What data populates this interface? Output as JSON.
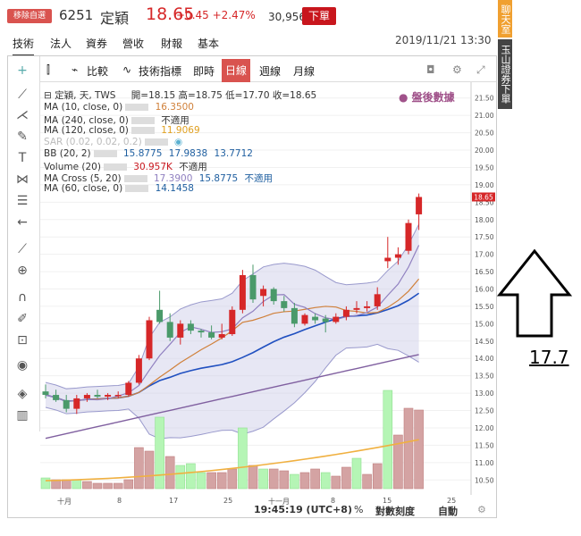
{
  "header": {
    "watch_label": "移除自選",
    "code": "6251",
    "name": "定穎",
    "price": "18.65",
    "change": "+0.45 +2.47%",
    "volume": "30,956.5張",
    "order_label": "下單"
  },
  "nav": [
    "技術",
    "法人",
    "資券",
    "營收",
    "財報",
    "基本"
  ],
  "datetime": "2019/11/21 13:30",
  "side_tabs": [
    "聊天室",
    "玉山證券下單"
  ],
  "toolbar": {
    "compare": "比較",
    "indicators": "技術指標",
    "realtime": "即時",
    "daily": "日線",
    "weekly": "週線",
    "monthly": "月線"
  },
  "legend": {
    "main": "定穎, 天, TWS",
    "ohlc": "開=18.15 高=18.75 低=17.70 收=18.65",
    "after_hours": "● 盤後數據",
    "ma10": {
      "label": "MA (10, close, 0)",
      "v1": "16.3500"
    },
    "ma240": {
      "label": "MA (240, close, 0)",
      "v1": "不適用"
    },
    "ma120": {
      "label": "MA (120, close, 0)",
      "v1": "11.9069"
    },
    "sar": {
      "label": "SAR (0.02, 0.02, 0.2)"
    },
    "bb": {
      "label": "BB (20, 2)",
      "v1": "15.8775",
      "v2": "17.9838",
      "v3": "13.7712"
    },
    "volume": {
      "label": "Volume (20)",
      "v1": "30.957K",
      "v2": "不適用"
    },
    "macross": {
      "label": "MA Cross (5, 20)",
      "v1": "17.3900",
      "v2": "15.8775",
      "v3": "不適用"
    },
    "ma60": {
      "label": "MA (60, close, 0)",
      "v1": "14.1458"
    }
  },
  "y_ticks": [
    "21.50",
    "21.00",
    "20.50",
    "20.00",
    "19.50",
    "19.00",
    "18.50",
    "18.00",
    "17.50",
    "17.00",
    "16.50",
    "16.00",
    "15.50",
    "15.00",
    "14.50",
    "14.00",
    "13.50",
    "13.00",
    "12.50",
    "12.00",
    "11.50",
    "11.00",
    "10.50"
  ],
  "price_tag": "18.65",
  "x_ticks": [
    "十月",
    "8",
    "17",
    "25",
    "十一月",
    "8",
    "15",
    "25"
  ],
  "status": {
    "time": "19:45:19 (UTC+8)",
    "pct": "%",
    "log": "對數刻度",
    "auto": "自動"
  },
  "annotation": "17.7",
  "colors": {
    "up": "#d62728",
    "down": "#2e8b57",
    "accent": "#d9534f"
  },
  "chart_data": {
    "type": "candlestick",
    "candles": [
      {
        "o": 13.05,
        "h": 13.25,
        "l": 12.85,
        "c": 12.95
      },
      {
        "o": 12.95,
        "h": 13.1,
        "l": 12.75,
        "c": 12.8
      },
      {
        "o": 12.8,
        "h": 12.95,
        "l": 12.45,
        "c": 12.55
      },
      {
        "o": 12.55,
        "h": 12.95,
        "l": 12.4,
        "c": 12.85
      },
      {
        "o": 12.85,
        "h": 13.0,
        "l": 12.75,
        "c": 12.95
      },
      {
        "o": 12.95,
        "h": 13.1,
        "l": 12.85,
        "c": 12.9
      },
      {
        "o": 12.9,
        "h": 13.0,
        "l": 12.8,
        "c": 12.95
      },
      {
        "o": 12.95,
        "h": 13.05,
        "l": 12.85,
        "c": 12.95
      },
      {
        "o": 12.95,
        "h": 13.35,
        "l": 12.9,
        "c": 13.3
      },
      {
        "o": 13.3,
        "h": 14.1,
        "l": 13.25,
        "c": 14.0
      },
      {
        "o": 14.0,
        "h": 15.2,
        "l": 13.95,
        "c": 15.1
      },
      {
        "o": 15.4,
        "h": 15.95,
        "l": 15.0,
        "c": 15.05
      },
      {
        "o": 15.05,
        "h": 15.3,
        "l": 14.5,
        "c": 14.6
      },
      {
        "o": 14.6,
        "h": 15.1,
        "l": 14.4,
        "c": 15.0
      },
      {
        "o": 15.0,
        "h": 15.1,
        "l": 14.7,
        "c": 14.8
      },
      {
        "o": 14.8,
        "h": 14.85,
        "l": 14.6,
        "c": 14.75
      },
      {
        "o": 14.75,
        "h": 14.95,
        "l": 14.55,
        "c": 14.6
      },
      {
        "o": 14.6,
        "h": 15.0,
        "l": 14.55,
        "c": 14.7
      },
      {
        "o": 14.7,
        "h": 15.5,
        "l": 14.65,
        "c": 15.4
      },
      {
        "o": 15.4,
        "h": 16.55,
        "l": 15.3,
        "c": 16.4
      },
      {
        "o": 16.4,
        "h": 16.7,
        "l": 15.6,
        "c": 15.7
      },
      {
        "o": 15.8,
        "h": 16.1,
        "l": 15.5,
        "c": 16.0
      },
      {
        "o": 16.0,
        "h": 16.05,
        "l": 15.55,
        "c": 15.65
      },
      {
        "o": 15.65,
        "h": 15.8,
        "l": 15.35,
        "c": 15.45
      },
      {
        "o": 15.45,
        "h": 15.6,
        "l": 14.9,
        "c": 15.0
      },
      {
        "o": 15.0,
        "h": 15.3,
        "l": 14.95,
        "c": 15.25
      },
      {
        "o": 15.2,
        "h": 15.3,
        "l": 15.0,
        "c": 15.1
      },
      {
        "o": 15.15,
        "h": 15.25,
        "l": 14.75,
        "c": 15.05
      },
      {
        "o": 15.05,
        "h": 15.3,
        "l": 15.0,
        "c": 15.2
      },
      {
        "o": 15.2,
        "h": 15.5,
        "l": 15.1,
        "c": 15.4
      },
      {
        "o": 15.4,
        "h": 15.65,
        "l": 15.3,
        "c": 15.45
      },
      {
        "o": 15.45,
        "h": 15.65,
        "l": 15.35,
        "c": 15.5
      },
      {
        "o": 15.5,
        "h": 16.05,
        "l": 15.4,
        "c": 15.85
      },
      {
        "o": 16.8,
        "h": 17.5,
        "l": 16.6,
        "c": 16.9
      },
      {
        "o": 16.9,
        "h": 17.2,
        "l": 16.7,
        "c": 17.0
      },
      {
        "o": 17.1,
        "h": 18.0,
        "l": 17.0,
        "c": 17.9
      },
      {
        "o": 18.15,
        "h": 18.75,
        "l": 17.7,
        "c": 18.65
      }
    ],
    "volume": [
      0.6,
      0.5,
      0.5,
      0.5,
      0.4,
      0.3,
      0.3,
      0.3,
      0.5,
      2.3,
      2.1,
      4.0,
      1.8,
      1.3,
      1.4,
      0.9,
      0.9,
      0.9,
      1.1,
      3.4,
      1.3,
      1.1,
      1.1,
      1.0,
      0.8,
      0.9,
      1.1,
      0.9,
      0.7,
      1.2,
      1.7,
      0.8,
      1.4,
      5.5,
      3.0,
      4.5,
      4.4
    ],
    "volume_up": [
      false,
      true,
      true,
      false,
      true,
      true,
      true,
      true,
      true,
      true,
      true,
      false,
      true,
      false,
      false,
      false,
      true,
      true,
      true,
      false,
      true,
      false,
      true,
      true,
      false,
      true,
      true,
      false,
      true,
      true,
      false,
      true,
      true,
      false,
      true,
      true,
      true
    ],
    "ylim": [
      10.25,
      21.75
    ]
  }
}
